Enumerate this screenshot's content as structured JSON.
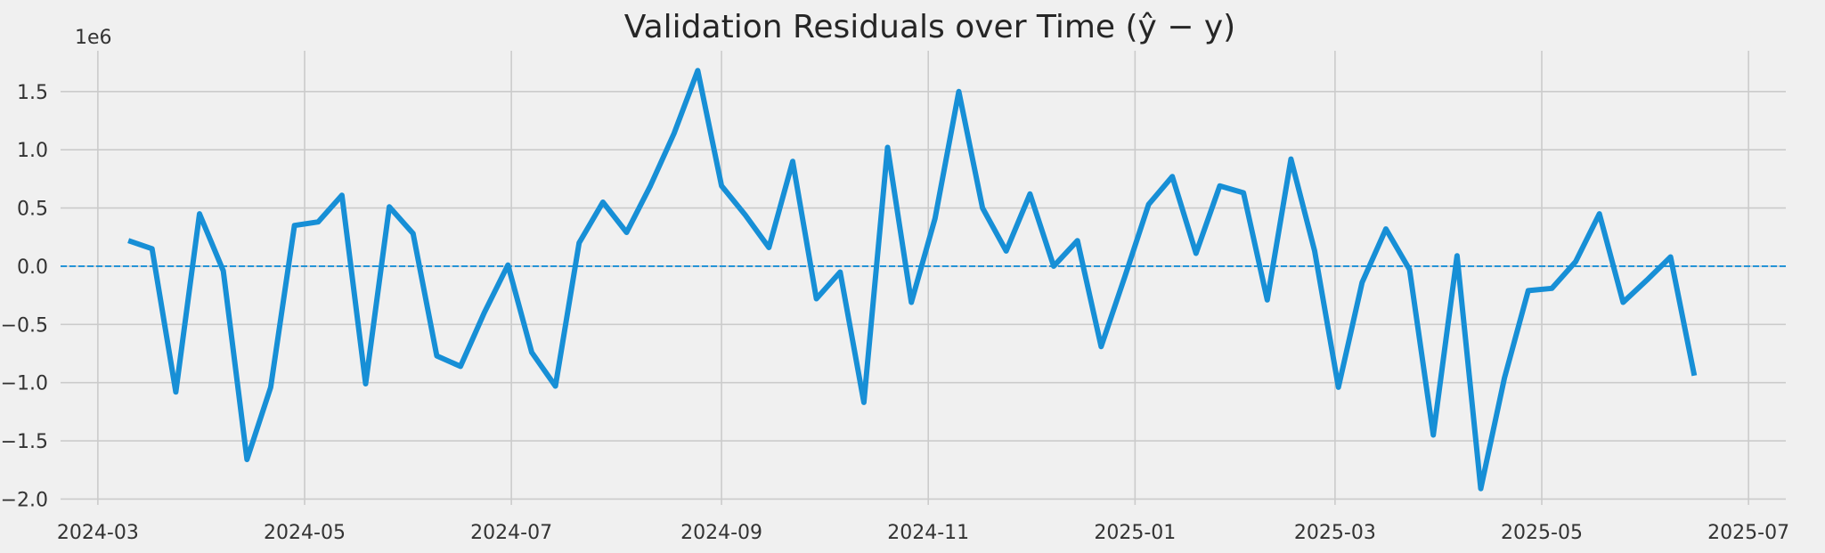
{
  "chart_data": {
    "type": "line",
    "title": "Validation Residuals over Time (ŷ − y)",
    "xlabel": "",
    "ylabel": "",
    "y_offset_label": "1e6",
    "ylim": [
      -2.05,
      1.85
    ],
    "xlim": [
      "2024-02-19",
      "2025-07-12"
    ],
    "grid": true,
    "legend": "none",
    "reference_line": {
      "y": 0,
      "style": "dashed"
    },
    "colors": {
      "line": "#178fd6",
      "background": "#f0f0f0",
      "grid": "#cbcbcb",
      "text": "#333333"
    },
    "x_ticks": [
      "2024-03-01",
      "2024-05-01",
      "2024-07-01",
      "2024-09-01",
      "2024-11-01",
      "2025-01-01",
      "2025-03-01",
      "2025-05-01",
      "2025-07-01"
    ],
    "x_tick_labels": [
      "2024-03",
      "2024-05",
      "2024-07",
      "2024-09",
      "2024-11",
      "2025-01",
      "2025-03",
      "2025-05",
      "2025-07"
    ],
    "y_ticks": [
      -2.0,
      -1.5,
      -1.0,
      -0.5,
      0.0,
      0.5,
      1.0,
      1.5
    ],
    "y_tick_labels": [
      "−2.0",
      "−1.5",
      "−1.0",
      "−0.5",
      "0.0",
      "0.5",
      "1.0",
      "1.5"
    ],
    "series": [
      {
        "x": [
          "2024-03-10",
          "2024-03-17",
          "2024-03-24",
          "2024-03-31",
          "2024-04-07",
          "2024-04-14",
          "2024-04-21",
          "2024-04-28",
          "2024-05-05",
          "2024-05-12",
          "2024-05-19",
          "2024-05-26",
          "2024-06-02",
          "2024-06-09",
          "2024-06-16",
          "2024-06-23",
          "2024-06-30",
          "2024-07-07",
          "2024-07-14",
          "2024-07-21",
          "2024-07-28",
          "2024-08-04",
          "2024-08-11",
          "2024-08-18",
          "2024-08-25",
          "2024-09-01",
          "2024-09-08",
          "2024-09-15",
          "2024-09-22",
          "2024-09-29",
          "2024-10-06",
          "2024-10-13",
          "2024-10-20",
          "2024-10-27",
          "2024-11-03",
          "2024-11-10",
          "2024-11-17",
          "2024-11-24",
          "2024-12-01",
          "2024-12-08",
          "2024-12-15",
          "2024-12-22",
          "2024-12-29",
          "2025-01-05",
          "2025-01-12",
          "2025-01-19",
          "2025-01-26",
          "2025-02-02",
          "2025-02-09",
          "2025-02-16",
          "2025-02-23",
          "2025-03-02",
          "2025-03-09",
          "2025-03-16",
          "2025-03-23",
          "2025-03-30",
          "2025-04-06",
          "2025-04-13",
          "2025-04-20",
          "2025-04-27",
          "2025-05-04",
          "2025-05-11",
          "2025-05-18",
          "2025-05-25",
          "2025-06-01",
          "2025-06-08",
          "2025-06-15"
        ],
        "y": [
          0.22,
          0.15,
          -1.08,
          0.45,
          -0.04,
          -1.66,
          -1.04,
          0.35,
          0.38,
          0.61,
          -1.01,
          0.51,
          0.28,
          -0.77,
          -0.86,
          -0.4,
          0.01,
          -0.74,
          -1.03,
          0.2,
          0.55,
          0.29,
          0.69,
          1.14,
          1.68,
          0.69,
          0.44,
          0.16,
          0.9,
          -0.28,
          -0.05,
          -1.17,
          1.02,
          -0.31,
          0.41,
          1.5,
          0.5,
          0.13,
          0.62,
          0.0,
          0.22,
          -0.69,
          -0.09,
          0.53,
          0.77,
          0.11,
          0.69,
          0.63,
          -0.29,
          0.92,
          0.13,
          -1.04,
          -0.14,
          0.32,
          -0.03,
          -1.45,
          0.09,
          -1.91,
          -0.96,
          -0.21,
          -0.19,
          0.04,
          0.45,
          -0.31,
          -0.12,
          0.08,
          -0.94
        ]
      }
    ]
  }
}
